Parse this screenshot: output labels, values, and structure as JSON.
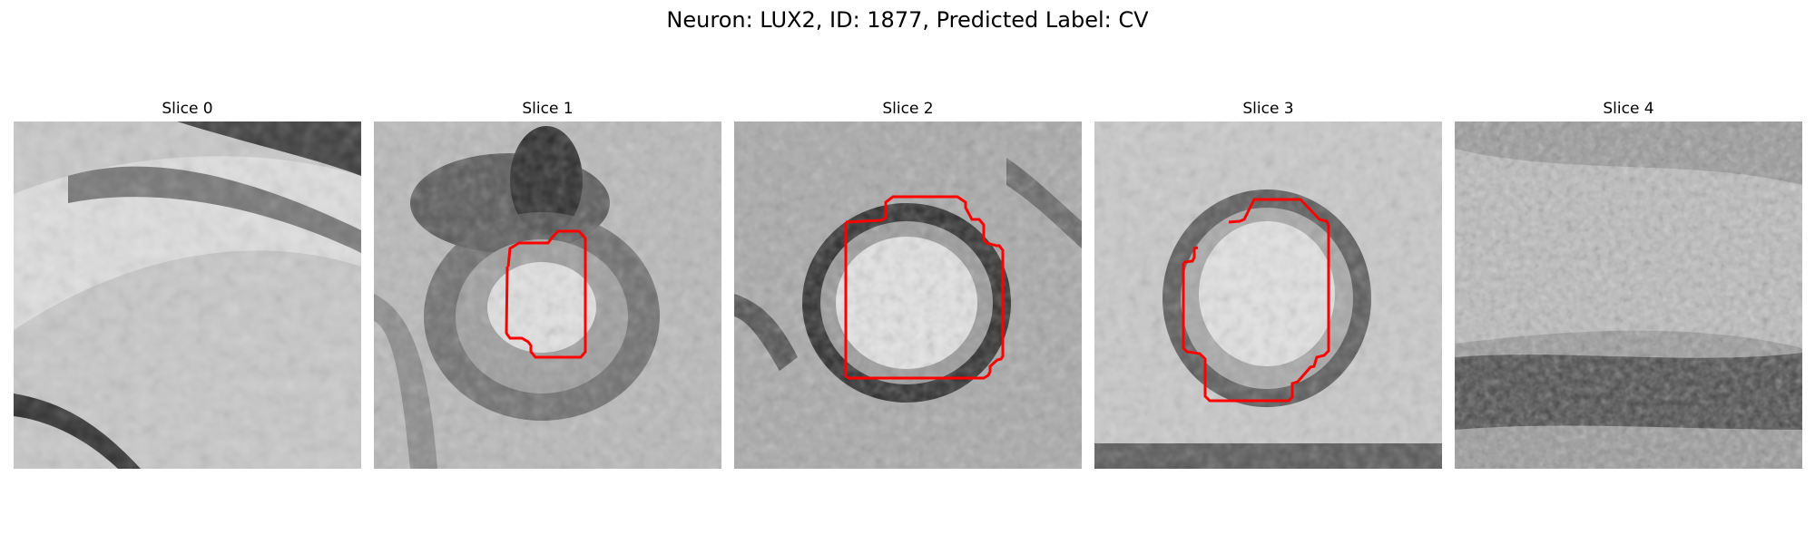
{
  "figure": {
    "title": "Neuron: LUX2, ID: 1877, Predicted Label: CV"
  },
  "panels": [
    {
      "title": "Slice 0",
      "image": "grayscale-em-microscopy-slice",
      "contour": false
    },
    {
      "title": "Slice 1",
      "image": "grayscale-em-microscopy-slice",
      "contour": true
    },
    {
      "title": "Slice 2",
      "image": "grayscale-em-microscopy-slice",
      "contour": true
    },
    {
      "title": "Slice 3",
      "image": "grayscale-em-microscopy-slice",
      "contour": true
    },
    {
      "title": "Slice 4",
      "image": "grayscale-em-microscopy-slice",
      "contour": false
    }
  ],
  "colors": {
    "contour": "#ff0000",
    "background": "#ffffff"
  }
}
